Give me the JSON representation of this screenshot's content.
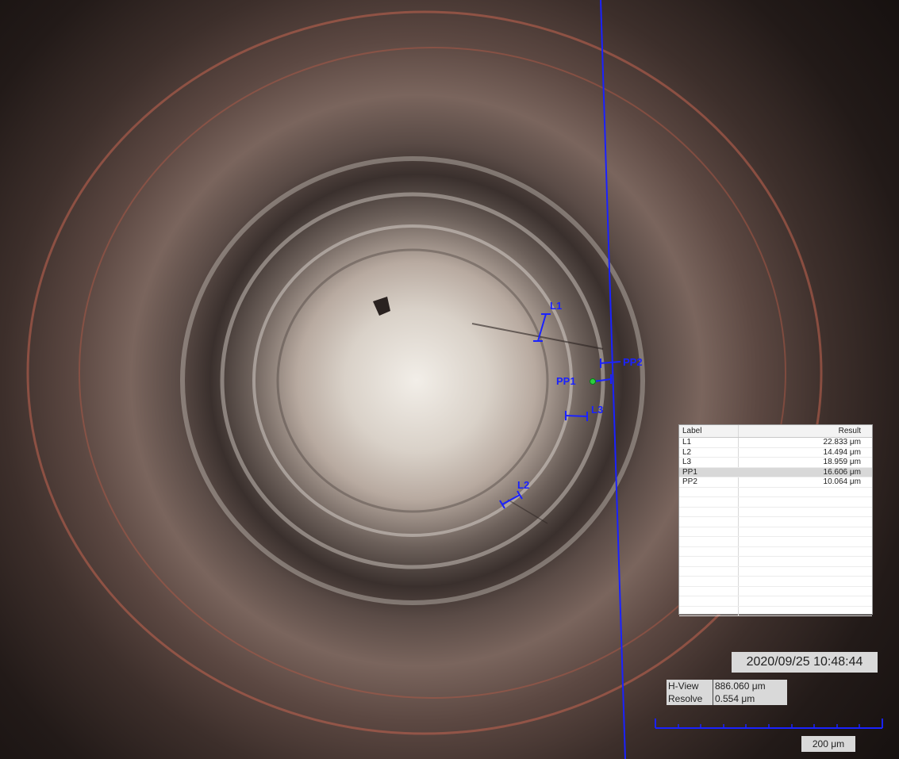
{
  "timestamp": "2020/09/25 10:48:44",
  "measurement_labels": {
    "l1": "L1",
    "l2": "L2",
    "l3": "L3",
    "pp1": "PP1",
    "pp2": "PP2"
  },
  "results_table": {
    "headers": {
      "label": "Label",
      "result": "Result"
    },
    "rows": [
      {
        "label": "L1",
        "result": "22.833 μm"
      },
      {
        "label": "L2",
        "result": "14.494 μm"
      },
      {
        "label": "L3",
        "result": "18.959 μm"
      },
      {
        "label": "PP1",
        "result": "16.606 μm",
        "selected": true
      },
      {
        "label": "PP2",
        "result": "10.064 μm"
      }
    ]
  },
  "info": {
    "hview_label": "H-View",
    "hview_value": "886.060 μm",
    "resolve_label": "Resolve",
    "resolve_value": "0.554 μm"
  },
  "scale_bar": {
    "label": "200 μm"
  },
  "colors": {
    "measurement_blue": "#1a22ff",
    "overlay_gray": "#d9d9d9",
    "table_selected": "#d8d8d8",
    "pp1_marker": "#2ecc40"
  }
}
